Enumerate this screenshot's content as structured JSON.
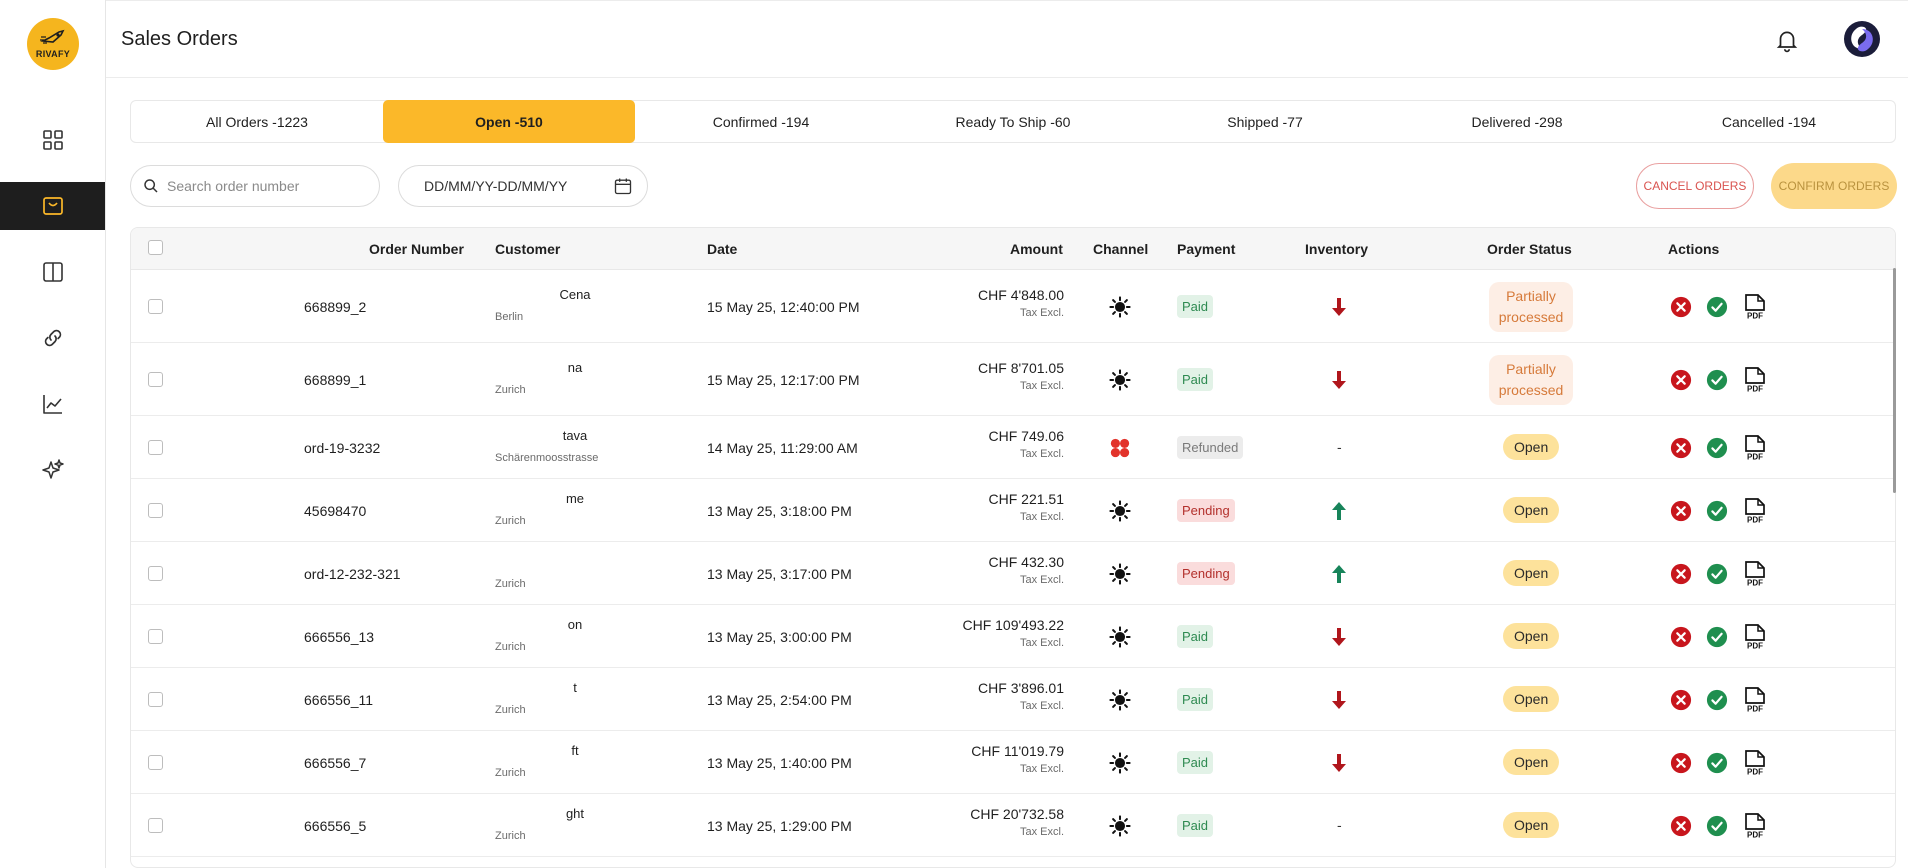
{
  "app": {
    "logo_text": "RIVAFY",
    "page_title": "Sales Orders"
  },
  "sidebar": {
    "items": [
      {
        "icon": "grid-icon"
      },
      {
        "icon": "shopping-bag-icon",
        "active": true
      },
      {
        "icon": "panel-icon"
      },
      {
        "icon": "link-icon"
      },
      {
        "icon": "chart-line-icon"
      },
      {
        "icon": "sparkles-icon"
      }
    ]
  },
  "tabs": [
    {
      "label": "All Orders -1223"
    },
    {
      "label": "Open -510",
      "active": true
    },
    {
      "label": "Confirmed -194"
    },
    {
      "label": "Ready To Ship -60"
    },
    {
      "label": "Shipped -77"
    },
    {
      "label": "Delivered -298"
    },
    {
      "label": "Cancelled -194"
    }
  ],
  "toolbar": {
    "search_placeholder": "Search order number",
    "date_placeholder": "DD/MM/YY-DD/MM/YY",
    "cancel_label": "CANCEL ORDERS",
    "confirm_label": "CONFIRM ORDERS"
  },
  "table": {
    "headers": {
      "order_number": "Order Number",
      "customer": "Customer",
      "date": "Date",
      "amount": "Amount",
      "channel": "Channel",
      "payment": "Payment",
      "inventory": "Inventory",
      "order_status": "Order Status",
      "actions": "Actions"
    },
    "rows": [
      {
        "order": "668899_2",
        "customer_name": "Cena",
        "customer_city": "Berlin",
        "date": "15 May 25, 12:40:00 PM",
        "amount": "CHF 4'848.00",
        "tax": "Tax Excl.",
        "channel": "sun-icon",
        "payment": "Paid",
        "payment_type": "paid",
        "inventory": "down",
        "status": "Partially processed",
        "status_type": "partial"
      },
      {
        "order": "668899_1",
        "customer_name": "na",
        "customer_city": "Zurich",
        "date": "15 May 25, 12:17:00 PM",
        "amount": "CHF 8'701.05",
        "tax": "Tax Excl.",
        "channel": "sun-icon",
        "payment": "Paid",
        "payment_type": "paid",
        "inventory": "down",
        "status": "Partially processed",
        "status_type": "partial"
      },
      {
        "order": "ord-19-3232",
        "customer_name": "tava",
        "customer_city": "Schärenmoosstrasse",
        "date": "14 May 25, 11:29:00 AM",
        "amount": "CHF 749.06",
        "tax": "Tax Excl.",
        "channel": "clover-icon",
        "payment": "Refunded",
        "payment_type": "refunded",
        "inventory": "-",
        "status": "Open",
        "status_type": "open"
      },
      {
        "order": "45698470",
        "customer_name": "me",
        "customer_city": "Zurich",
        "date": "13 May 25, 3:18:00 PM",
        "amount": "CHF 221.51",
        "tax": "Tax Excl.",
        "channel": "sun-icon",
        "payment": "Pending",
        "payment_type": "pending",
        "inventory": "up",
        "status": "Open",
        "status_type": "open"
      },
      {
        "order": "ord-12-232-321",
        "customer_name": "",
        "customer_city": "Zurich",
        "date": "13 May 25, 3:17:00 PM",
        "amount": "CHF 432.30",
        "tax": "Tax Excl.",
        "channel": "sun-icon",
        "payment": "Pending",
        "payment_type": "pending",
        "inventory": "up",
        "status": "Open",
        "status_type": "open"
      },
      {
        "order": "666556_13",
        "customer_name": "on",
        "customer_city": "Zurich",
        "date": "13 May 25, 3:00:00 PM",
        "amount": "CHF 109'493.22",
        "tax": "Tax Excl.",
        "channel": "sun-icon",
        "payment": "Paid",
        "payment_type": "paid",
        "inventory": "down",
        "status": "Open",
        "status_type": "open"
      },
      {
        "order": "666556_11",
        "customer_name": "t",
        "customer_city": "Zurich",
        "date": "13 May 25, 2:54:00 PM",
        "amount": "CHF 3'896.01",
        "tax": "Tax Excl.",
        "channel": "sun-icon",
        "payment": "Paid",
        "payment_type": "paid",
        "inventory": "down",
        "status": "Open",
        "status_type": "open"
      },
      {
        "order": "666556_7",
        "customer_name": "ft",
        "customer_city": "Zurich",
        "date": "13 May 25, 1:40:00 PM",
        "amount": "CHF 11'019.79",
        "tax": "Tax Excl.",
        "channel": "sun-icon",
        "payment": "Paid",
        "payment_type": "paid",
        "inventory": "down",
        "status": "Open",
        "status_type": "open"
      },
      {
        "order": "666556_5",
        "customer_name": "ght",
        "customer_city": "Zurich",
        "date": "13 May 25, 1:29:00 PM",
        "amount": "CHF 20'732.58",
        "tax": "Tax Excl.",
        "channel": "sun-icon",
        "payment": "Paid",
        "payment_type": "paid",
        "inventory": "-",
        "status": "Open",
        "status_type": "open"
      }
    ]
  },
  "colors": {
    "accent": "#fbb829",
    "sidebar_active": "#1e1e1e",
    "arrow_down": "#b0161c",
    "arrow_up": "#17845a",
    "action_cancel": "#c8161d",
    "action_confirm": "#1f8f4f"
  }
}
